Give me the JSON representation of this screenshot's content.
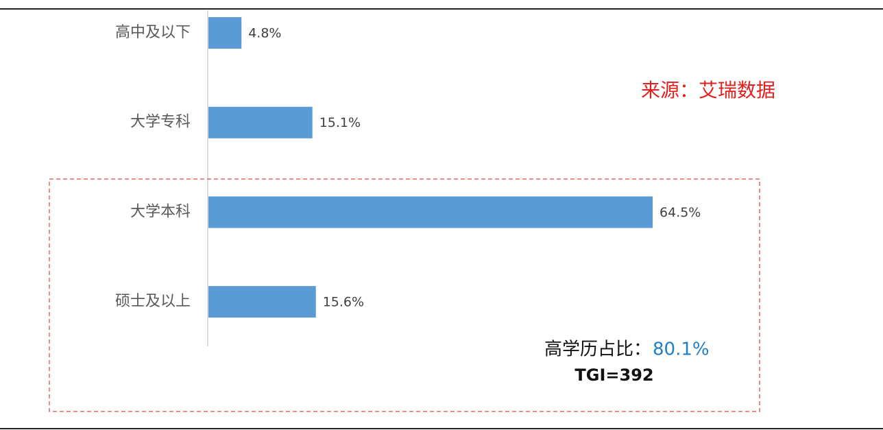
{
  "chart_data": {
    "type": "bar",
    "categories": [
      "高中及以下",
      "大学专科",
      "大学本科",
      "硕士及以上"
    ],
    "values": [
      4.8,
      15.1,
      64.5,
      15.6
    ],
    "value_labels": [
      "4.8%",
      "15.1%",
      "64.5%",
      "15.6%"
    ],
    "color": "#5b9bd5",
    "source": "来源：艾瑞数据",
    "highlight_label": "高学历占比：",
    "highlight_value": "80.1%",
    "tgi": "TGI=392"
  }
}
